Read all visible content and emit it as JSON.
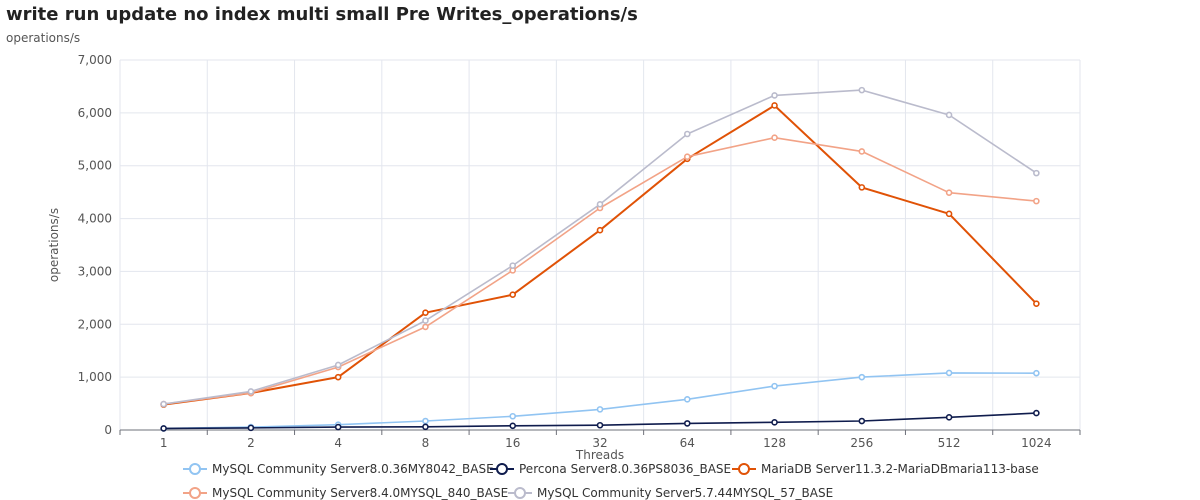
{
  "header": {
    "title": "write run update no index multi small Pre Writes_operations/s",
    "subtitle": "operations/s"
  },
  "chart_data": {
    "type": "line",
    "title": "write run update no index multi small Pre Writes_operations/s",
    "xlabel": "Threads",
    "ylabel": "operations/s",
    "categories": [
      "1",
      "2",
      "4",
      "8",
      "16",
      "32",
      "64",
      "128",
      "256",
      "512",
      "1024"
    ],
    "ylim": [
      0,
      7000
    ],
    "yticks": [
      0,
      1000,
      2000,
      3000,
      4000,
      5000,
      6000,
      7000
    ],
    "ytick_labels": [
      "0",
      "1,000",
      "2,000",
      "3,000",
      "4,000",
      "5,000",
      "6,000",
      "7,000"
    ],
    "grid": true,
    "legend_position": "bottom-center",
    "series": [
      {
        "name": "MySQL Community Server8.0.36MY8042_BASE",
        "color": "#91c4f2",
        "values": [
          30,
          55,
          100,
          170,
          260,
          390,
          580,
          830,
          1000,
          1080,
          1075
        ]
      },
      {
        "name": "Percona Server8.0.36PS8036_BASE",
        "color": "#0f1c4d",
        "values": [
          30,
          40,
          55,
          60,
          80,
          90,
          125,
          145,
          170,
          240,
          320
        ]
      },
      {
        "name": "MariaDB Server11.3.2-MariaDBmaria113-base",
        "color": "#e05206",
        "values": [
          480,
          700,
          1000,
          2220,
          2560,
          3780,
          5130,
          6140,
          4590,
          4090,
          2390
        ]
      },
      {
        "name": "MySQL Community Server8.4.0MYSQL_840_BASE",
        "color": "#f2a387",
        "values": [
          490,
          700,
          1190,
          1950,
          3020,
          4200,
          5170,
          5530,
          5270,
          4490,
          4330
        ]
      },
      {
        "name": "MySQL Community Server5.7.44MYSQL_57_BASE",
        "color": "#babbcc",
        "values": [
          490,
          730,
          1230,
          2070,
          3110,
          4270,
          5600,
          6330,
          6430,
          5960,
          4860
        ]
      }
    ]
  }
}
